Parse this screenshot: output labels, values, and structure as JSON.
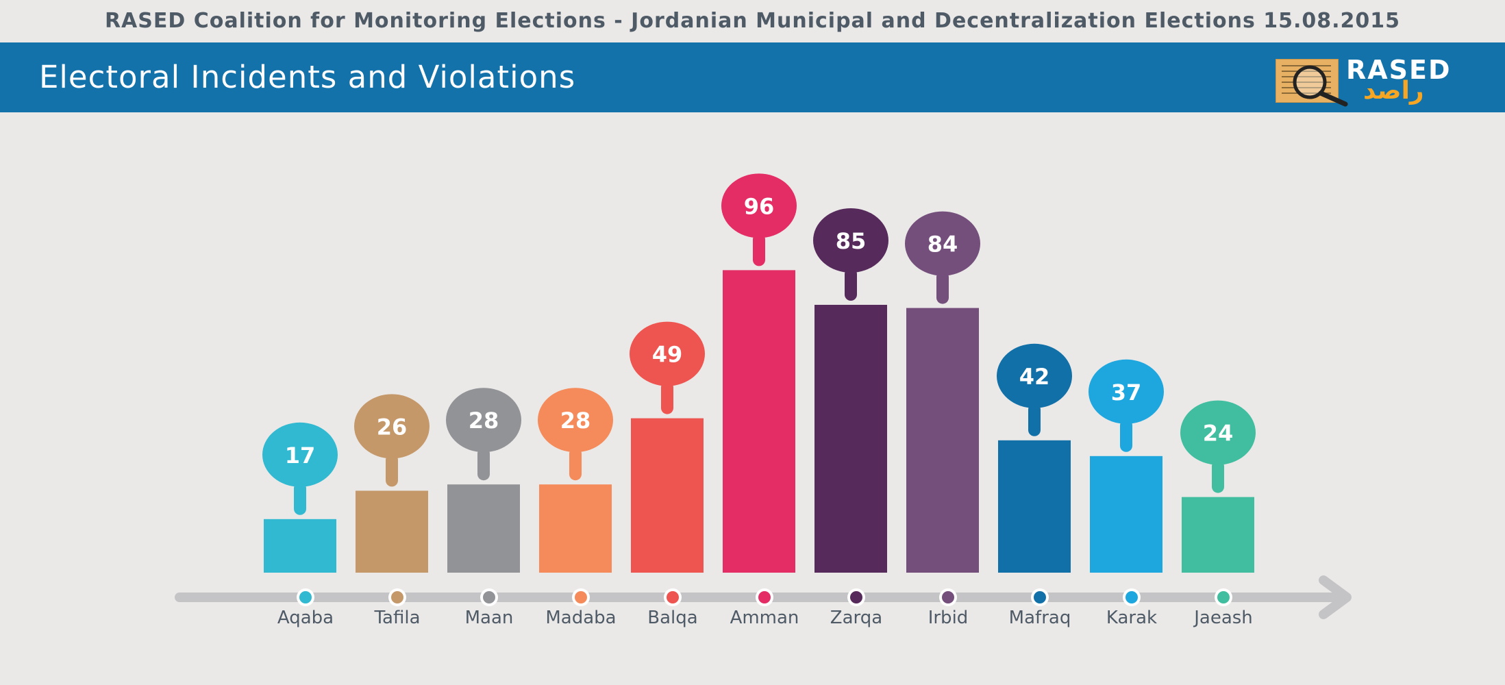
{
  "header": {
    "top_title": "RASED Coalition for Monitoring Elections - Jordanian Municipal and Decentralization Elections 15.08.2015",
    "banner_title": "Electoral Incidents and Violations",
    "logo_text_en": "RASED",
    "logo_text_ar": "راصد"
  },
  "chart_data": {
    "type": "bar",
    "title": "Electoral Incidents and Violations",
    "categories": [
      "Aqaba",
      "Tafila",
      "Maan",
      "Madaba",
      "Balqa",
      "Amman",
      "Zarqa",
      "Irbid",
      "Mafraq",
      "Karak",
      "Jaeash"
    ],
    "values": [
      17,
      26,
      28,
      28,
      49,
      96,
      85,
      84,
      42,
      37,
      24
    ],
    "colors": [
      "#30b9d0",
      "#c5986a",
      "#929397",
      "#f58b5a",
      "#ee5550",
      "#e42c65",
      "#572a5c",
      "#744f7c",
      "#1270a8",
      "#1ea7df",
      "#40be9f"
    ],
    "xlabel": "",
    "ylabel": "",
    "ylim": [
      0,
      100
    ],
    "grid": false,
    "legend": "none",
    "data_labels": "callout above each bar"
  }
}
